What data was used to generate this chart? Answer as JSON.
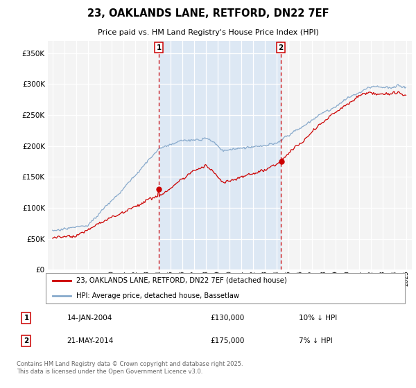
{
  "title": "23, OAKLANDS LANE, RETFORD, DN22 7EF",
  "subtitle": "Price paid vs. HM Land Registry's House Price Index (HPI)",
  "ylim": [
    0,
    370000
  ],
  "yticks": [
    0,
    50000,
    100000,
    150000,
    200000,
    250000,
    300000,
    350000
  ],
  "ytick_labels": [
    "£0",
    "£50K",
    "£100K",
    "£150K",
    "£200K",
    "£250K",
    "£300K",
    "£350K"
  ],
  "x_start_year": 1995,
  "x_end_year": 2025,
  "sale1_date": 2004.04,
  "sale1_price": 130000,
  "sale1_pct": "10% ↓ HPI",
  "sale1_text": "14-JAN-2004",
  "sale2_date": 2014.38,
  "sale2_price": 175000,
  "sale2_pct": "7% ↓ HPI",
  "sale2_text": "21-MAY-2014",
  "legend_line1": "23, OAKLANDS LANE, RETFORD, DN22 7EF (detached house)",
  "legend_line2": "HPI: Average price, detached house, Bassetlaw",
  "footer": "Contains HM Land Registry data © Crown copyright and database right 2025.\nThis data is licensed under the Open Government Licence v3.0.",
  "line_color_red": "#cc0000",
  "line_color_blue": "#88aacc",
  "shade_color": "#dde8f4",
  "bg_color": "#f8f8f8",
  "grid_color": "#cccccc"
}
